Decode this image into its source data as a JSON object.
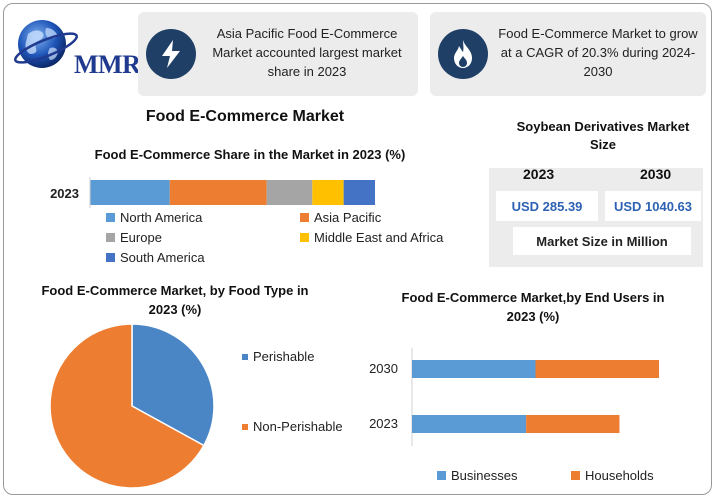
{
  "brand": {
    "logo_text": "MMR"
  },
  "cards": [
    {
      "icon": "lightning-icon",
      "text": "Asia Pacific Food E-Commerce Market accounted largest market share in 2023"
    },
    {
      "icon": "flame-icon",
      "text": "Food E-Commerce Market to grow at a CAGR of 20.3% during 2024-2030"
    }
  ],
  "main_title": "Food E-Commerce Market",
  "market_size": {
    "title": "Soybean Derivatives Market Size",
    "years": [
      "2023",
      "2030"
    ],
    "values": [
      "USD 285.39",
      "USD 1040.63"
    ],
    "unit_label": "Market Size in Million"
  },
  "colors": {
    "north_america": "#5b9bd5",
    "asia_pacific": "#ed7d31",
    "europe": "#a5a5a5",
    "middle_east_africa": "#ffc000",
    "south_america": "#4472c4",
    "perishable": "#4a86c5",
    "non_perishable": "#ed7d31"
  },
  "chart_data": [
    {
      "type": "bar",
      "orientation": "horizontal-stacked",
      "title": "Food E-Commerce Share in the Market in 2023 (%)",
      "categories": [
        "2023"
      ],
      "series": [
        {
          "name": "North America",
          "values": [
            28
          ]
        },
        {
          "name": "Asia Pacific",
          "values": [
            34
          ]
        },
        {
          "name": "Europe",
          "values": [
            16
          ]
        },
        {
          "name": "Middle East and Africa",
          "values": [
            11
          ]
        },
        {
          "name": "South America",
          "values": [
            11
          ]
        }
      ],
      "legend": "bottom"
    },
    {
      "type": "pie",
      "title": "Food E-Commerce Market, by Food Type in 2023 (%)",
      "labels": [
        "Perishable",
        "Non-Perishable"
      ],
      "values": [
        33,
        67
      ],
      "legend": "right"
    },
    {
      "type": "bar",
      "orientation": "horizontal-stacked",
      "title": "Food E-Commerce Market,by End Users in 2023 (%)",
      "categories": [
        "2030",
        "2023"
      ],
      "series": [
        {
          "name": "Businesses",
          "values": [
            50,
            55
          ]
        },
        {
          "name": "Households",
          "values": [
            50,
            45
          ]
        }
      ],
      "legend": "bottom"
    }
  ]
}
